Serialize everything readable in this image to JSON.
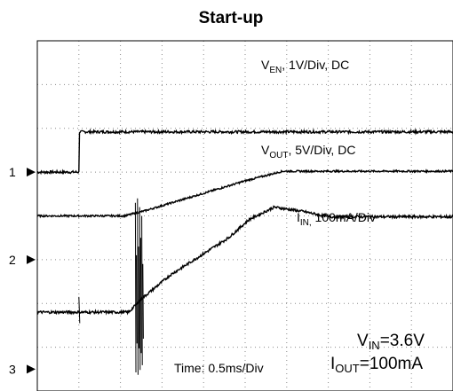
{
  "chart_data": {
    "type": "line",
    "title": "Start-up",
    "x_unit": "ms",
    "time_scale": "Time: 0.5ms/Div",
    "x_divisions": 10,
    "y_divisions": 8,
    "grid": true,
    "channel_markers": [
      {
        "label": "1",
        "level_div": 5.0
      },
      {
        "label": "2",
        "level_div": 3.0
      },
      {
        "label": "3",
        "level_div": 0.5
      }
    ],
    "series": [
      {
        "name": "V_EN",
        "label_main": "V",
        "label_sub": "EN",
        "label_rest": ", 1V/Div, DC",
        "points_ms_div": [
          [
            0,
            5.0
          ],
          [
            0.5,
            5.0
          ],
          [
            0.5,
            5.92
          ],
          [
            5.0,
            5.92
          ]
        ],
        "noise": 0.03
      },
      {
        "name": "V_OUT",
        "label_main": "V",
        "label_sub": "OUT",
        "label_rest": ", 5V/Div, DC",
        "points_ms_div": [
          [
            0,
            4.0
          ],
          [
            1.05,
            4.0
          ],
          [
            1.3,
            4.12
          ],
          [
            2.5,
            4.8
          ],
          [
            2.95,
            5.02
          ],
          [
            3.6,
            5.02
          ],
          [
            5.0,
            5.02
          ]
        ],
        "noise": 0.02
      },
      {
        "name": "I_IN",
        "label_main": "I",
        "label_sub": "IN,",
        "label_rest": " 100mA/Div",
        "points_ms_div": [
          [
            0,
            1.8
          ],
          [
            1.1,
            1.8
          ],
          [
            1.25,
            2.1
          ],
          [
            1.6,
            2.65
          ],
          [
            2.3,
            3.5
          ],
          [
            2.55,
            3.92
          ],
          [
            2.85,
            4.2
          ],
          [
            3.2,
            4.1
          ],
          [
            3.5,
            3.98
          ],
          [
            5.0,
            3.98
          ]
        ],
        "noise": 0.03
      }
    ],
    "annotations": {
      "vin_main": "V",
      "vin_sub": "IN",
      "vin_rest": "=3.6V",
      "iout_main": "I",
      "iout_sub": "OUT",
      "iout_rest": "=100mA"
    }
  },
  "colors": {
    "trace": "#000000",
    "grid_dots": "#8a8a8a",
    "frame": "#000000"
  }
}
